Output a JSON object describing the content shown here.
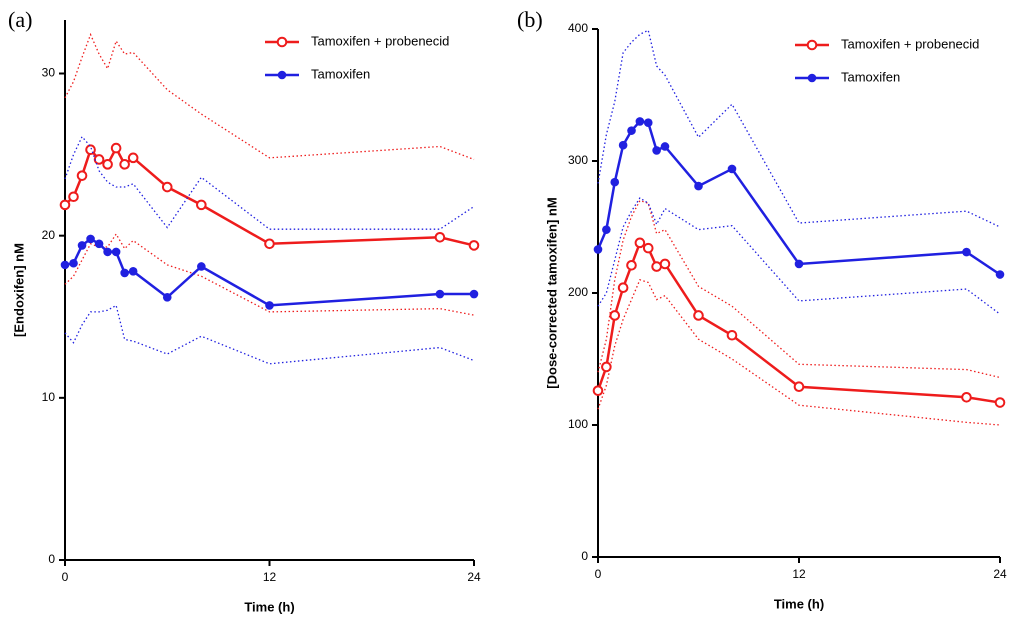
{
  "chart_data": [
    {
      "type": "line",
      "panel_label": "(a)",
      "x_label": "Time (h)",
      "y_label": "[Endoxifen] nM",
      "xlim": [
        0,
        24
      ],
      "xticks": [
        0,
        12,
        24
      ],
      "ylim": [
        0,
        33.3
      ],
      "yticks": [
        0,
        10,
        20,
        30
      ],
      "x": [
        0,
        0.5,
        1,
        1.5,
        2,
        2.5,
        3,
        3.5,
        4,
        6,
        8,
        12,
        22,
        24
      ],
      "series": [
        {
          "name": "Tamoxifen + probenecid",
          "color": "#ee1c1c",
          "marker": "open-circle",
          "values": [
            21.9,
            22.4,
            23.7,
            25.3,
            24.7,
            24.4,
            25.4,
            24.4,
            24.8,
            23.0,
            21.9,
            19.5,
            19.9,
            19.4
          ],
          "upper": [
            28.5,
            29.5,
            31,
            32.4,
            31.2,
            30.3,
            32,
            31.2,
            31.3,
            29,
            27.5,
            24.8,
            25.5,
            24.7
          ],
          "lower": [
            17,
            17.5,
            18.5,
            19.5,
            19.3,
            19.3,
            20.1,
            19.2,
            19.7,
            18.2,
            17.5,
            15.3,
            15.5,
            15.1
          ]
        },
        {
          "name": "Tamoxifen",
          "color": "#2020e0",
          "marker": "dot",
          "values": [
            18.2,
            18.3,
            19.4,
            19.8,
            19.5,
            19.0,
            19.0,
            17.7,
            17.8,
            16.2,
            18.1,
            15.7,
            16.4,
            16.4
          ],
          "upper": [
            23.5,
            25,
            26.1,
            25.5,
            24,
            23.3,
            23,
            23,
            23.2,
            20.5,
            23.6,
            20.4,
            20.4,
            21.8
          ],
          "lower": [
            14,
            13.4,
            14.5,
            15.3,
            15.3,
            15.4,
            15.7,
            13.6,
            13.5,
            12.7,
            13.8,
            12.1,
            13.1,
            12.3
          ]
        }
      ]
    },
    {
      "type": "line",
      "panel_label": "(b)",
      "x_label": "Time (h)",
      "y_label": "[Dose-corrected tamoxifen] nM",
      "xlim": [
        0,
        24
      ],
      "xticks": [
        0,
        12,
        24
      ],
      "ylim": [
        0,
        400
      ],
      "yticks": [
        0,
        100,
        200,
        300,
        400
      ],
      "x": [
        0,
        0.5,
        1,
        1.5,
        2,
        2.5,
        3,
        3.5,
        4,
        6,
        8,
        12,
        22,
        24
      ],
      "series": [
        {
          "name": "Tamoxifen + probenecid",
          "color": "#ee1c1c",
          "marker": "open-circle",
          "values": [
            126,
            144,
            183,
            204,
            221,
            238,
            234,
            220,
            222,
            183,
            168,
            129,
            121,
            117
          ],
          "upper": [
            140,
            165,
            210,
            240,
            258,
            270,
            268,
            245,
            248,
            205,
            190,
            146,
            142,
            136
          ],
          "lower": [
            112,
            130,
            160,
            180,
            195,
            210,
            208,
            195,
            198,
            165,
            150,
            115,
            102,
            100
          ]
        },
        {
          "name": "Tamoxifen",
          "color": "#2020e0",
          "marker": "dot",
          "values": [
            233,
            248,
            284,
            312,
            323,
            330,
            329,
            308,
            311,
            281,
            294,
            222,
            231,
            214
          ],
          "upper": [
            283,
            320,
            345,
            382,
            390,
            396,
            399,
            372,
            365,
            318,
            343,
            253,
            262,
            250
          ],
          "lower": [
            190,
            200,
            225,
            250,
            262,
            272,
            268,
            252,
            264,
            248,
            251,
            194,
            203,
            184
          ]
        }
      ]
    }
  ]
}
